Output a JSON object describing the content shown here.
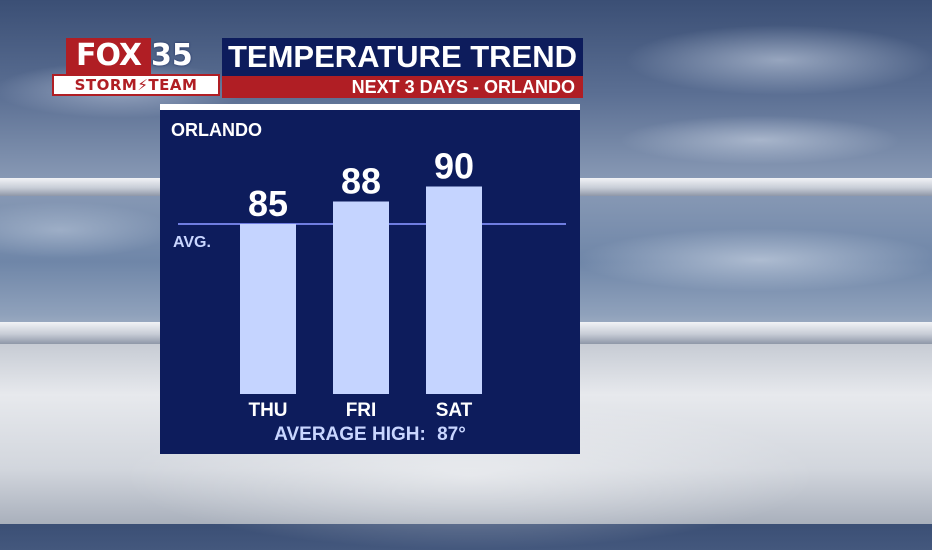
{
  "branding": {
    "logo_fox": "FOX",
    "logo_number": "35",
    "logo_team": "STORM⚡TEAM"
  },
  "header": {
    "title": "TEMPERATURE TREND",
    "subtitle": "NEXT 3 DAYS - ORLANDO"
  },
  "panel": {
    "location": "ORLANDO",
    "avg_label": "AVG.",
    "average_high_label": "AVERAGE HIGH:",
    "average_high_value": "87°"
  },
  "colors": {
    "panel_bg": "#0d1c5c",
    "bar": "#c5d4ff",
    "avg_line": "#6f7de0",
    "brand_red": "#b01e24"
  },
  "chart_data": {
    "type": "bar",
    "title": "TEMPERATURE TREND",
    "categories": [
      "THU",
      "FRI",
      "SAT"
    ],
    "values": [
      85,
      88,
      90
    ],
    "reference_line": {
      "label": "AVG.",
      "value": 87
    },
    "grid": false
  }
}
